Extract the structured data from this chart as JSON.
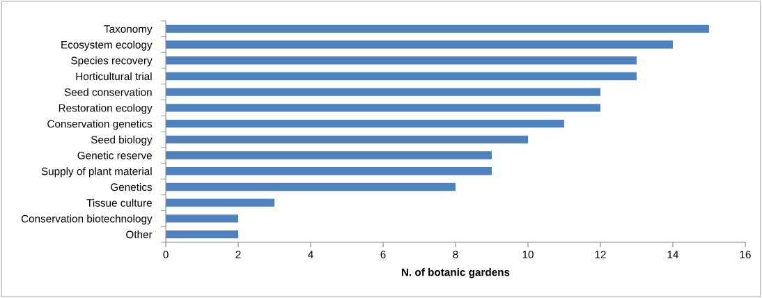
{
  "chart_data": {
    "type": "bar",
    "orientation": "horizontal",
    "xlabel": "N. of botanic gardens",
    "categories": [
      "Taxonomy",
      "Ecosystem ecology",
      "Species recovery",
      "Horticultural trial",
      "Seed conservation",
      "Restoration ecology",
      "Conservation genetics",
      "Seed biology",
      "Genetic reserve",
      "Supply of plant material",
      "Genetics",
      "Tissue culture",
      "Conservation biotechnology",
      "Other"
    ],
    "values": [
      15,
      14,
      13,
      13,
      12,
      12,
      11,
      10,
      9,
      9,
      8,
      3,
      2,
      2
    ],
    "color": "#4f81bd",
    "xlim": [
      0,
      16
    ],
    "xticks": [
      0,
      2,
      4,
      6,
      8,
      10,
      12,
      14,
      16
    ],
    "grid": false,
    "legend": false
  }
}
